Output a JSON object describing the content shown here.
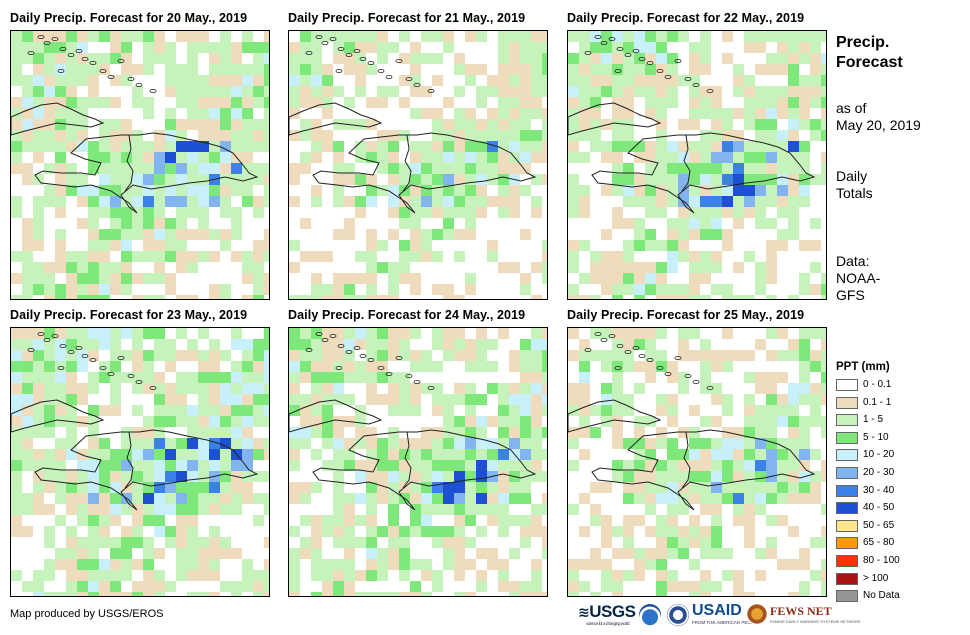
{
  "panels": [
    {
      "title": "Daily Precip. Forecast for 20 May., 2019",
      "date": "20 May"
    },
    {
      "title": "Daily Precip. Forecast for 21 May., 2019",
      "date": "21 May"
    },
    {
      "title": "Daily Precip. Forecast for 22 May., 2019",
      "date": "22 May"
    },
    {
      "title": "Daily Precip. Forecast for 23 May., 2019",
      "date": "23 May"
    },
    {
      "title": "Daily Precip. Forecast for 24 May., 2019",
      "date": "24 May"
    },
    {
      "title": "Daily Precip. Forecast for 25 May., 2019",
      "date": "25 May"
    }
  ],
  "side": {
    "title_line1": "Precip.",
    "title_line2": "Forecast",
    "asof_line1": "as of",
    "asof_line2": "May 20, 2019",
    "totals_line1": "Daily",
    "totals_line2": "Totals",
    "data_line1": "Data:",
    "data_line2": "NOAA-",
    "data_line3": "GFS"
  },
  "legend": {
    "title": "PPT (mm)",
    "items": [
      {
        "label": "0 - 0.1",
        "color": "#ffffff"
      },
      {
        "label": "0.1 - 1",
        "color": "#eedcbd"
      },
      {
        "label": "1 - 5",
        "color": "#c6f2bc"
      },
      {
        "label": "5 - 10",
        "color": "#7ee87a"
      },
      {
        "label": "10 - 20",
        "color": "#c8f0fa"
      },
      {
        "label": "20 - 30",
        "color": "#82b4f0"
      },
      {
        "label": "30 - 40",
        "color": "#3c82e6"
      },
      {
        "label": "40 - 50",
        "color": "#1e50d2"
      },
      {
        "label": "50 - 65",
        "color": "#ffe68c"
      },
      {
        "label": "65 - 80",
        "color": "#ff9900"
      },
      {
        "label": "80 - 100",
        "color": "#ff3200"
      },
      {
        "label": "> 100",
        "color": "#aa1414"
      },
      {
        "label": "No Data",
        "color": "#969696"
      }
    ]
  },
  "footer": {
    "credit": "Map produced by USGS/EROS",
    "logos": {
      "usgs": "USGS",
      "usgs_tagline": "science for a changing world",
      "usaid": "USAID",
      "usaid_tagline": "FROM THE AMERICAN PEOPLE",
      "fews": "FEWS NET",
      "fews_tagline": "FAMINE EARLY WARNING SYSTEMS NETWORK"
    }
  }
}
